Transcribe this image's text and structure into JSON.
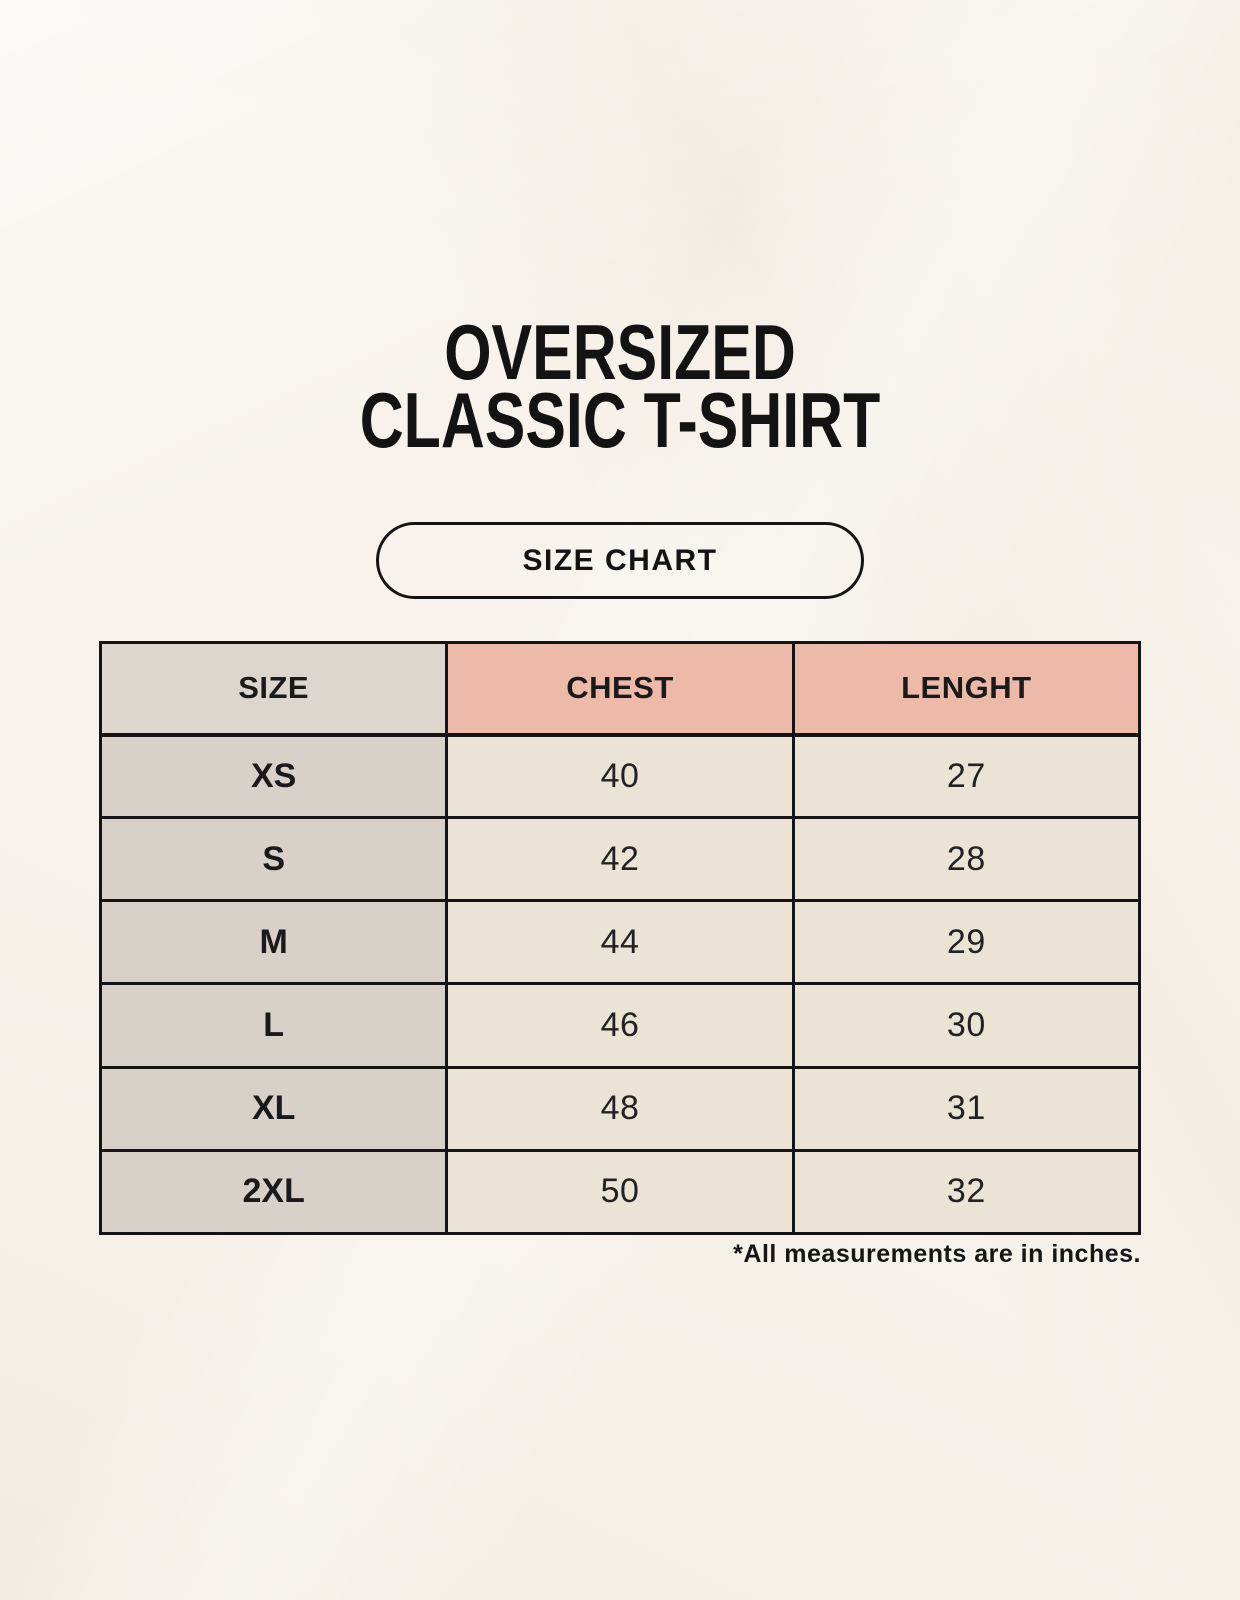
{
  "header": {
    "title_line1": "OVERSIZED",
    "title_line2": "CLASSIC T-SHIRT",
    "size_chart_label": "SIZE CHART"
  },
  "footnote": "*All measurements are in inches.",
  "colors": {
    "background": "#f7f3ec",
    "header_size_bg": "#ddd6cf",
    "header_measurement_bg": "#edbaa9",
    "size_column_bg": "#d8d1ca",
    "value_cell_bg": "#eae3d6",
    "table_border": "#141414",
    "text": "#1a1a1a"
  },
  "chart_data": {
    "type": "table",
    "title": "OVERSIZED CLASSIC T-SHIRT",
    "subtitle": "SIZE CHART",
    "columns": [
      "SIZE",
      "CHEST",
      "LENGHT"
    ],
    "rows": [
      [
        "XS",
        "40",
        "27"
      ],
      [
        "S",
        "42",
        "28"
      ],
      [
        "M",
        "44",
        "29"
      ],
      [
        "L",
        "46",
        "30"
      ],
      [
        "XL",
        "48",
        "31"
      ],
      [
        "2XL",
        "50",
        "32"
      ]
    ],
    "units_note": "*All measurements are in inches."
  }
}
